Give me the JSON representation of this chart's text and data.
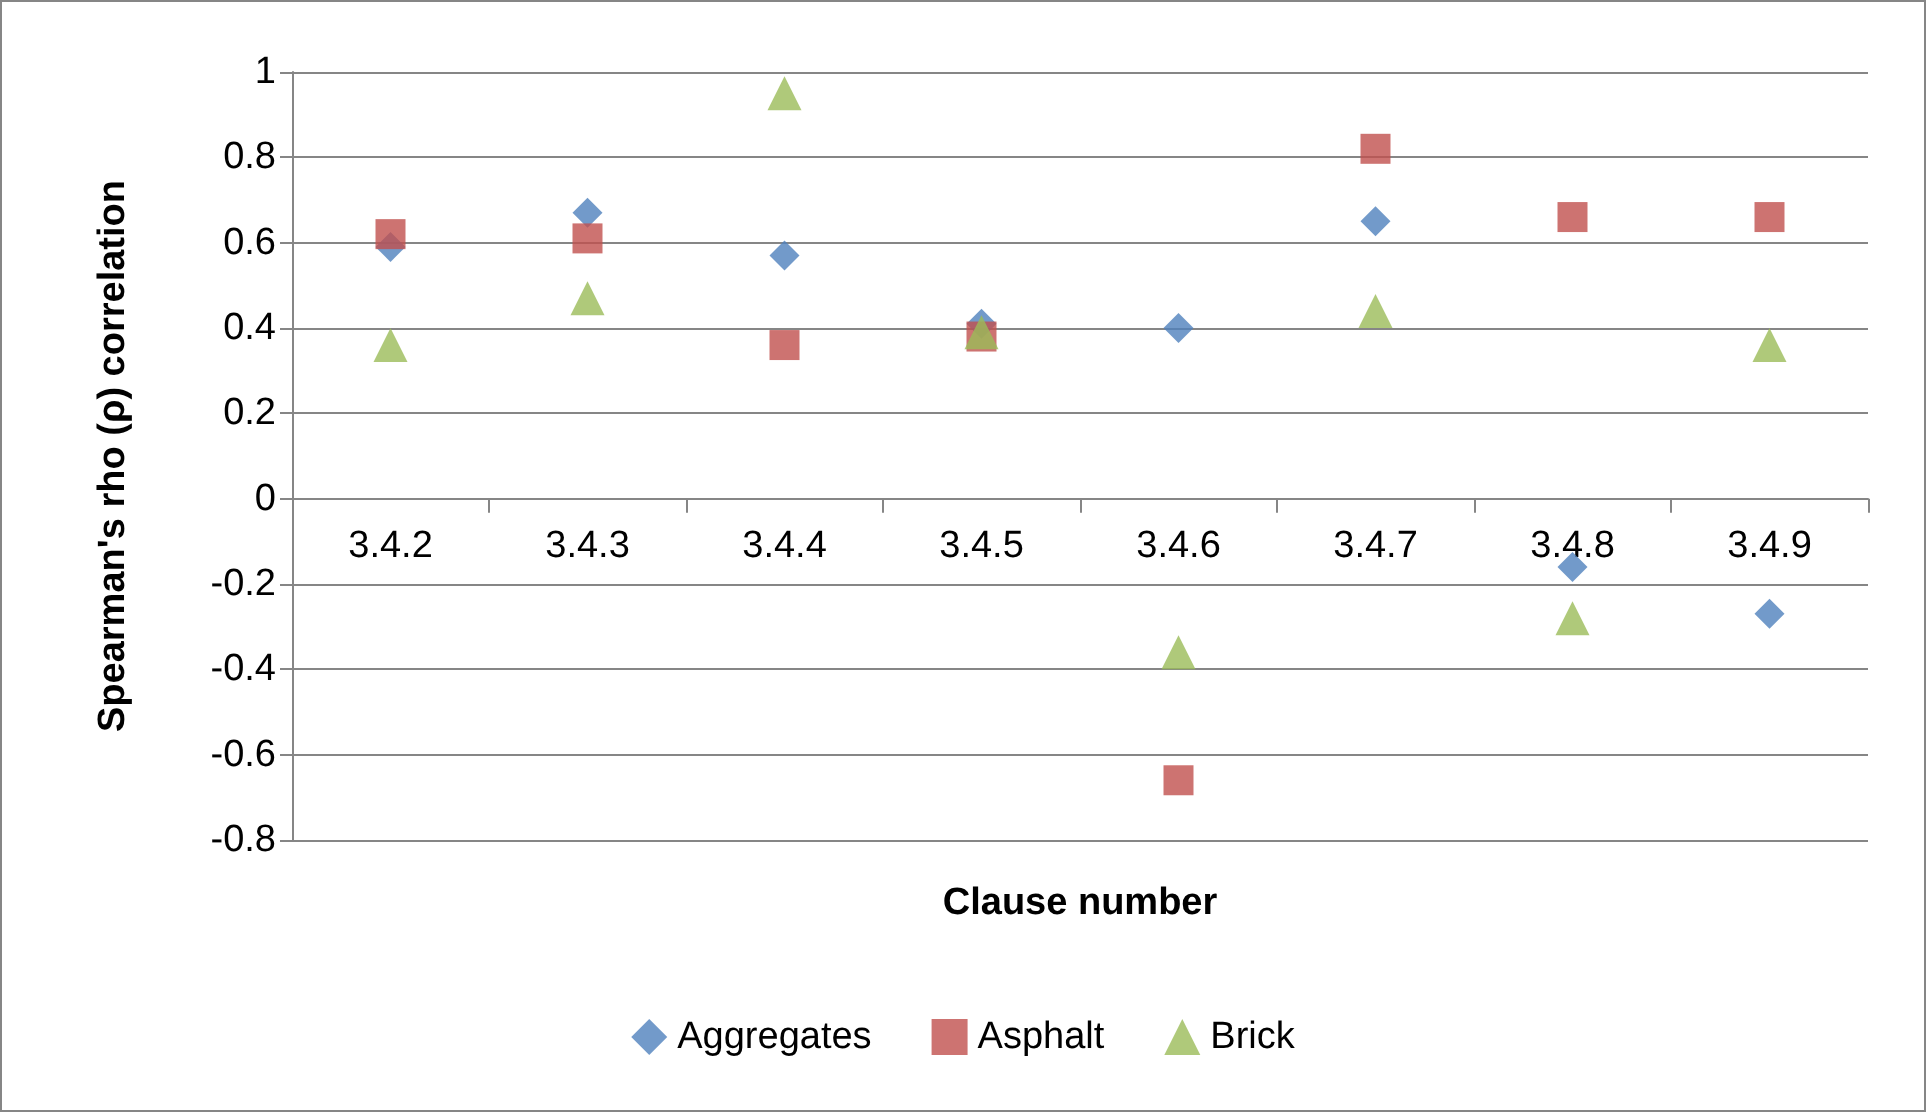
{
  "chart_data": {
    "type": "scatter",
    "xlabel": "Clause number",
    "ylabel": "Spearman's rho (ρ) correlation",
    "categories": [
      "3.4.2",
      "3.4.3",
      "3.4.4",
      "3.4.5",
      "3.4.6",
      "3.4.7",
      "3.4.8",
      "3.4.9"
    ],
    "series": [
      {
        "name": "Aggregates",
        "color": "#4f81bd",
        "marker": "diamond",
        "values": [
          0.59,
          0.67,
          0.57,
          0.41,
          0.4,
          0.65,
          -0.16,
          -0.27
        ]
      },
      {
        "name": "Asphalt",
        "color": "#c0504d",
        "marker": "square",
        "values": [
          0.62,
          0.61,
          0.36,
          0.38,
          -0.66,
          0.82,
          0.66,
          0.66
        ]
      },
      {
        "name": "Brick",
        "color": "#9bbb59",
        "marker": "triangle",
        "values": [
          0.36,
          0.47,
          0.95,
          0.39,
          -0.36,
          0.44,
          -0.28,
          0.36
        ]
      }
    ],
    "ylim": [
      -0.8,
      1
    ],
    "yticks": [
      -0.8,
      -0.6,
      -0.4,
      -0.2,
      0,
      0.2,
      0.4,
      0.6,
      0.8,
      1
    ],
    "grid": "y",
    "legend": "bottom"
  }
}
